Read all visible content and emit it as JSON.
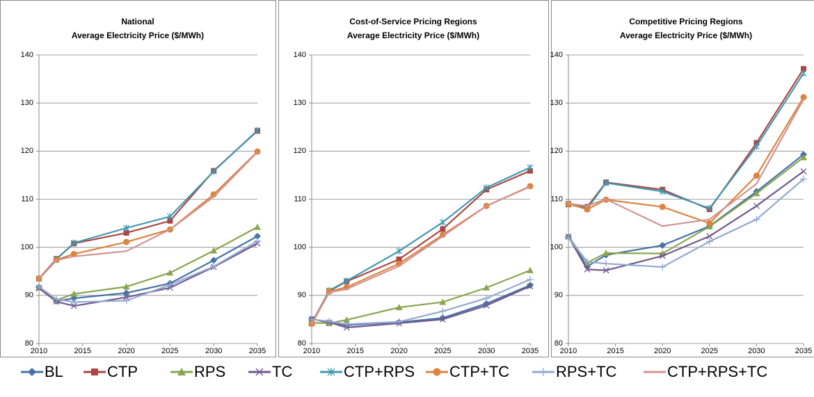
{
  "chart_data": [
    {
      "type": "line",
      "title": [
        "National",
        "Average Electricity Price ($/MWh)"
      ],
      "x": [
        2010,
        2012,
        2014,
        2020,
        2025,
        2030,
        2035
      ],
      "xlim": [
        2010,
        2035
      ],
      "xticks": [
        2010,
        2015,
        2020,
        2025,
        2030,
        2035
      ],
      "ylim": [
        80,
        140
      ],
      "yticks": [
        80,
        90,
        100,
        110,
        120,
        130,
        140
      ],
      "grid": true,
      "legend": "bottom",
      "series": [
        {
          "name": "BL",
          "color": "#4572a7",
          "marker": "diamond",
          "values": [
            91.7,
            88.8,
            89.4,
            90.5,
            92.5,
            97.3,
            102.3
          ]
        },
        {
          "name": "CTP",
          "color": "#aa4643",
          "marker": "square",
          "values": [
            93.5,
            97.6,
            100.8,
            103.0,
            105.5,
            115.9,
            124.2
          ]
        },
        {
          "name": "RPS",
          "color": "#89a54e",
          "marker": "triangle",
          "values": [
            91.6,
            89.0,
            90.3,
            91.8,
            94.7,
            99.3,
            104.2
          ]
        },
        {
          "name": "TC",
          "color": "#71588f",
          "marker": "x",
          "values": [
            91.5,
            88.7,
            87.8,
            89.6,
            91.6,
            95.9,
            100.8
          ]
        },
        {
          "name": "CTP+RPS",
          "color": "#4198af",
          "marker": "star",
          "values": [
            93.5,
            97.5,
            100.9,
            104.0,
            106.4,
            115.8,
            124.3
          ]
        },
        {
          "name": "CTP+TC",
          "color": "#db843d",
          "marker": "circle",
          "values": [
            93.5,
            97.4,
            98.6,
            101.1,
            103.7,
            111.0,
            119.9
          ]
        },
        {
          "name": "RPS+TC",
          "color": "#93a9cf",
          "marker": "plus",
          "values": [
            91.8,
            89.2,
            88.6,
            88.9,
            92.2,
            96.0,
            101.3
          ]
        },
        {
          "name": "CTP+RPS+TC",
          "color": "#d19392",
          "marker": "none",
          "values": [
            93.4,
            97.3,
            98.1,
            99.2,
            103.7,
            110.5,
            119.8
          ]
        }
      ]
    },
    {
      "type": "line",
      "title": [
        "Cost-of-Service Pricing Regions",
        "Average Electricity Price ($/MWh)"
      ],
      "x": [
        2010,
        2012,
        2014,
        2020,
        2025,
        2030,
        2035
      ],
      "xlim": [
        2010,
        2035
      ],
      "xticks": [
        2010,
        2015,
        2020,
        2025,
        2030,
        2035
      ],
      "ylim": [
        80,
        140
      ],
      "yticks": [
        80,
        90,
        100,
        110,
        120,
        130,
        140
      ],
      "grid": true,
      "series": [
        {
          "values": [
            85.1,
            84.3,
            83.8,
            84.4,
            85.3,
            88.3,
            92.1
          ]
        },
        {
          "values": [
            84.2,
            90.9,
            92.9,
            97.5,
            103.8,
            112.0,
            115.9
          ]
        },
        {
          "values": [
            84.3,
            84.2,
            84.9,
            87.5,
            88.6,
            91.6,
            95.2
          ]
        },
        {
          "values": [
            85.1,
            84.4,
            83.3,
            84.2,
            85.0,
            87.9,
            91.9
          ]
        },
        {
          "values": [
            84.2,
            91.0,
            93.0,
            99.2,
            105.2,
            112.4,
            116.6
          ]
        },
        {
          "values": [
            84.1,
            90.8,
            91.7,
            96.6,
            102.6,
            108.6,
            112.7
          ]
        },
        {
          "values": [
            85.0,
            84.6,
            84.0,
            84.5,
            86.7,
            89.4,
            93.3
          ]
        },
        {
          "values": [
            84.0,
            90.6,
            91.3,
            96.1,
            102.3,
            108.6,
            112.6
          ]
        }
      ]
    },
    {
      "type": "line",
      "title": [
        "Competitive Pricing Regions",
        "Average Electricity Price ($/MWh)"
      ],
      "x": [
        2010,
        2012,
        2014,
        2020,
        2025,
        2030,
        2035
      ],
      "xlim": [
        2010,
        2035
      ],
      "xticks": [
        2010,
        2015,
        2020,
        2025,
        2030,
        2035
      ],
      "ylim": [
        80,
        140
      ],
      "yticks": [
        80,
        90,
        100,
        110,
        120,
        130,
        140
      ],
      "grid": true,
      "series": [
        {
          "values": [
            102.2,
            96.0,
            98.4,
            100.4,
            104.4,
            111.6,
            119.3
          ]
        },
        {
          "values": [
            108.9,
            108.4,
            113.5,
            112.0,
            107.9,
            121.7,
            137.1
          ]
        },
        {
          "values": [
            102.3,
            96.8,
            98.8,
            98.7,
            104.3,
            111.2,
            118.7
          ]
        },
        {
          "values": [
            102.2,
            95.4,
            95.2,
            98.2,
            102.3,
            108.6,
            115.8
          ]
        },
        {
          "values": [
            109.1,
            108.0,
            113.4,
            111.6,
            108.1,
            121.0,
            136.2
          ]
        },
        {
          "values": [
            109.0,
            107.9,
            109.9,
            108.4,
            105.0,
            114.9,
            131.2
          ]
        },
        {
          "values": [
            102.0,
            97.0,
            96.6,
            95.9,
            101.2,
            105.8,
            114.2
          ]
        },
        {
          "values": [
            109.1,
            108.6,
            110.0,
            104.4,
            105.8,
            113.2,
            130.8
          ]
        }
      ]
    }
  ]
}
